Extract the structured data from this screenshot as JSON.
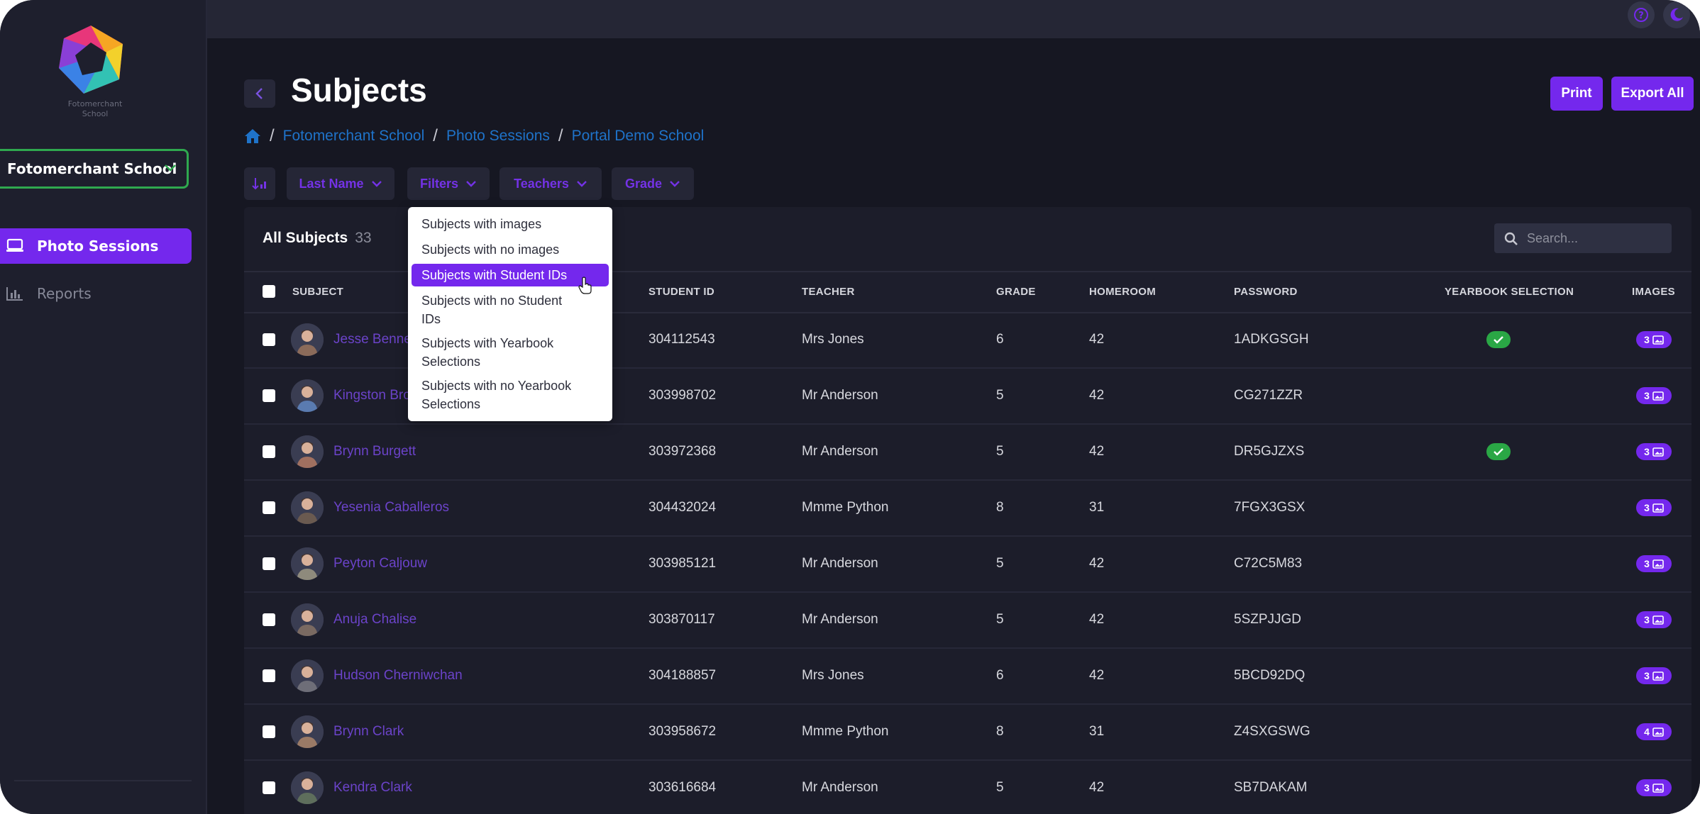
{
  "sidebar": {
    "logo_caption_line1": "Fotomerchant",
    "logo_caption_line2": "School",
    "school_select": "Fotomerchant School",
    "nav": [
      {
        "label": "Photo Sessions",
        "icon": "laptop-icon",
        "active": true
      },
      {
        "label": "Reports",
        "icon": "bar-chart-icon",
        "active": false
      }
    ]
  },
  "topbar": {
    "icons": [
      "help-icon",
      "dark-mode-icon"
    ]
  },
  "header": {
    "title": "Subjects",
    "print_label": "Print",
    "export_label": "Export All"
  },
  "breadcrumb": {
    "items": [
      "Fotomerchant School",
      "Photo Sessions",
      "Portal Demo School"
    ]
  },
  "toolbar": {
    "sort_icon": "sort-icon",
    "last_name": "Last Name",
    "filters": "Filters",
    "teachers": "Teachers",
    "grade": "Grade"
  },
  "filters_menu": {
    "items": [
      {
        "line1": "Subjects with images",
        "line2": ""
      },
      {
        "line1": "Subjects with no images",
        "line2": ""
      },
      {
        "line1": "Subjects with Student IDs",
        "line2": "",
        "active": true
      },
      {
        "line1": "Subjects with no Student",
        "line2": "IDs"
      },
      {
        "line1": "Subjects with Yearbook",
        "line2": "Selections"
      },
      {
        "line1": "Subjects with no Yearbook",
        "line2": "Selections"
      }
    ]
  },
  "table": {
    "heading": "All Subjects",
    "count": "33",
    "search_placeholder": "Search...",
    "columns": {
      "subject": "SUBJECT",
      "student_id": "STUDENT ID",
      "teacher": "TEACHER",
      "grade": "GRADE",
      "homeroom": "HOMEROOM",
      "password": "PASSWORD",
      "yearbook": "YEARBOOK SELECTION",
      "images": "IMAGES"
    },
    "rows": [
      {
        "name": "Jesse Bennett",
        "student_id": "304112543",
        "teacher": "Mrs Jones",
        "grade": "6",
        "homeroom": "42",
        "password": "1ADKGSGH",
        "yearbook": true,
        "images": "3"
      },
      {
        "name": "Kingston Brown",
        "student_id": "303998702",
        "teacher": "Mr Anderson",
        "grade": "5",
        "homeroom": "42",
        "password": "CG271ZZR",
        "yearbook": false,
        "images": "3"
      },
      {
        "name": "Brynn Burgett",
        "student_id": "303972368",
        "teacher": "Mr Anderson",
        "grade": "5",
        "homeroom": "42",
        "password": "DR5GJZXS",
        "yearbook": true,
        "images": "3"
      },
      {
        "name": "Yesenia Caballeros",
        "student_id": "304432024",
        "teacher": "Mmme Python",
        "grade": "8",
        "homeroom": "31",
        "password": "7FGX3GSX",
        "yearbook": false,
        "images": "3"
      },
      {
        "name": "Peyton Caljouw",
        "student_id": "303985121",
        "teacher": "Mr Anderson",
        "grade": "5",
        "homeroom": "42",
        "password": "C72C5M83",
        "yearbook": false,
        "images": "3"
      },
      {
        "name": "Anuja Chalise",
        "student_id": "303870117",
        "teacher": "Mr Anderson",
        "grade": "5",
        "homeroom": "42",
        "password": "5SZPJJGD",
        "yearbook": false,
        "images": "3"
      },
      {
        "name": "Hudson Cherniwchan",
        "student_id": "304188857",
        "teacher": "Mrs Jones",
        "grade": "6",
        "homeroom": "42",
        "password": "5BCD92DQ",
        "yearbook": false,
        "images": "3"
      },
      {
        "name": "Brynn Clark",
        "student_id": "303958672",
        "teacher": "Mmme Python",
        "grade": "8",
        "homeroom": "31",
        "password": "Z4SXGSWG",
        "yearbook": false,
        "images": "4"
      },
      {
        "name": "Kendra Clark",
        "student_id": "303616684",
        "teacher": "Mr Anderson",
        "grade": "5",
        "homeroom": "42",
        "password": "SB7DAKAM",
        "yearbook": false,
        "images": "3"
      }
    ]
  },
  "colors": {
    "accent": "#7428ed",
    "link": "#1f73c9",
    "success": "#2aa745",
    "background": "#161722"
  }
}
